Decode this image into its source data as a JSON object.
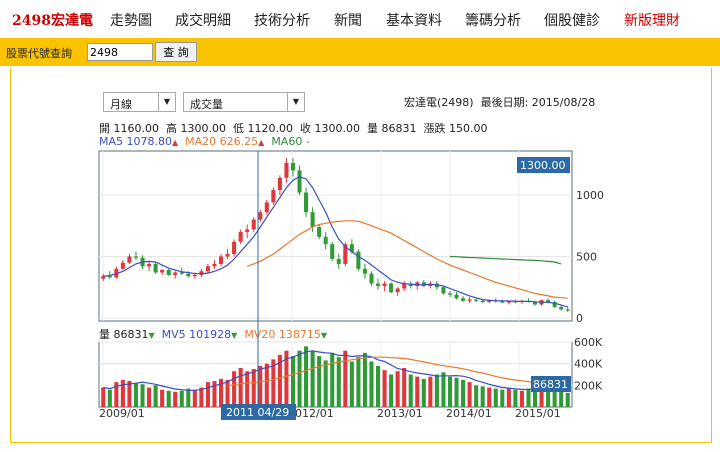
{
  "nav": {
    "brand": "2498宏達電",
    "items": [
      "走勢圖",
      "成交明細",
      "技術分析",
      "新聞",
      "基本資料",
      "籌碼分析",
      "個股健診",
      "新版理財"
    ]
  },
  "search": {
    "label": "股票代號查詢",
    "value": "2498",
    "button": "查 詢"
  },
  "controls": {
    "period": "月線",
    "indicator": "成交量"
  },
  "stock": {
    "name": "宏達電(2498)",
    "last_date_label": "最後日期:",
    "last_date": "2015/08/28"
  },
  "ohlc": {
    "open_label": "開",
    "open": "1160.00",
    "high_label": "高",
    "high": "1300.00",
    "low_label": "低",
    "low": "1120.00",
    "close_label": "收",
    "close": "1300.00",
    "volume_label": "量",
    "volume": "86831",
    "change_label": "漲跌",
    "change": "150.00"
  },
  "ma_line": {
    "ma5": "MA5 1078.80",
    "ma20": "MA20 626.25",
    "ma60": "MA60 -"
  },
  "vol_line": {
    "vol": "量 86831",
    "mv5": "MV5 101928",
    "mv20": "MV20 138715"
  },
  "colors": {
    "up": "#e0373c",
    "down": "#2f9a36",
    "ma5": "#3a4fc4",
    "ma20": "#e8782d",
    "ma60": "#2f8a3a",
    "tag": "#2c69a5",
    "accent": "#f9c300"
  },
  "chart_data": {
    "type": "candlestick",
    "price_ticks": [
      0,
      500,
      1000
    ],
    "volume_ticks": [
      "200K",
      "400K",
      "600K"
    ],
    "x_labels": [
      "2009/01",
      "2012/01",
      "2013/01",
      "2014/01",
      "2015/01"
    ],
    "cursor_label": "2011 04/29",
    "price_tag": "1300.00",
    "volume_tag": "86831",
    "candles": [
      [
        320,
        360,
        300,
        340,
        180
      ],
      [
        340,
        380,
        320,
        330,
        160
      ],
      [
        330,
        420,
        320,
        400,
        230
      ],
      [
        400,
        470,
        390,
        450,
        250
      ],
      [
        450,
        520,
        440,
        500,
        240
      ],
      [
        500,
        540,
        470,
        490,
        220
      ],
      [
        490,
        510,
        400,
        420,
        210
      ],
      [
        420,
        460,
        380,
        440,
        180
      ],
      [
        440,
        450,
        360,
        370,
        200
      ],
      [
        370,
        400,
        350,
        390,
        160
      ],
      [
        390,
        400,
        340,
        350,
        150
      ],
      [
        350,
        380,
        320,
        370,
        140
      ],
      [
        370,
        410,
        350,
        360,
        150
      ],
      [
        360,
        380,
        330,
        340,
        170
      ],
      [
        340,
        370,
        320,
        350,
        160
      ],
      [
        350,
        400,
        330,
        380,
        180
      ],
      [
        380,
        440,
        360,
        420,
        230
      ],
      [
        420,
        470,
        400,
        440,
        240
      ],
      [
        440,
        520,
        420,
        500,
        260
      ],
      [
        500,
        560,
        480,
        520,
        250
      ],
      [
        520,
        640,
        500,
        620,
        330
      ],
      [
        620,
        720,
        600,
        700,
        360
      ],
      [
        700,
        760,
        650,
        720,
        330
      ],
      [
        720,
        820,
        700,
        800,
        350
      ],
      [
        800,
        880,
        780,
        860,
        380
      ],
      [
        860,
        960,
        840,
        940,
        400
      ],
      [
        940,
        1060,
        920,
        1040,
        440
      ],
      [
        1040,
        1160,
        1000,
        1140,
        480
      ],
      [
        1140,
        1300,
        1100,
        1260,
        520
      ],
      [
        1260,
        1300,
        1150,
        1200,
        470
      ],
      [
        1200,
        1240,
        1000,
        1020,
        520
      ],
      [
        1020,
        1060,
        820,
        860,
        560
      ],
      [
        860,
        900,
        700,
        740,
        520
      ],
      [
        740,
        760,
        640,
        660,
        470
      ],
      [
        660,
        700,
        560,
        600,
        430
      ],
      [
        600,
        620,
        460,
        480,
        500
      ],
      [
        480,
        520,
        400,
        440,
        460
      ],
      [
        440,
        620,
        420,
        600,
        520
      ],
      [
        600,
        640,
        520,
        540,
        420
      ],
      [
        540,
        560,
        380,
        400,
        460
      ],
      [
        400,
        440,
        320,
        360,
        500
      ],
      [
        360,
        380,
        260,
        280,
        420
      ],
      [
        280,
        320,
        230,
        260,
        380
      ],
      [
        260,
        300,
        220,
        280,
        340
      ],
      [
        280,
        290,
        200,
        210,
        300
      ],
      [
        210,
        250,
        180,
        240,
        330
      ],
      [
        240,
        300,
        220,
        280,
        360
      ],
      [
        280,
        300,
        240,
        260,
        300
      ],
      [
        260,
        300,
        230,
        290,
        280
      ],
      [
        290,
        310,
        250,
        260,
        260
      ],
      [
        260,
        300,
        240,
        280,
        280
      ],
      [
        280,
        300,
        230,
        250,
        300
      ],
      [
        250,
        260,
        190,
        200,
        320
      ],
      [
        200,
        220,
        170,
        190,
        280
      ],
      [
        190,
        210,
        150,
        160,
        270
      ],
      [
        160,
        180,
        130,
        140,
        250
      ],
      [
        140,
        170,
        120,
        150,
        230
      ],
      [
        150,
        160,
        130,
        140,
        200
      ],
      [
        140,
        150,
        120,
        130,
        190
      ],
      [
        130,
        150,
        120,
        145,
        180
      ],
      [
        145,
        160,
        125,
        135,
        170
      ],
      [
        135,
        150,
        120,
        125,
        160
      ],
      [
        125,
        140,
        110,
        135,
        170
      ],
      [
        135,
        150,
        120,
        130,
        160
      ],
      [
        130,
        145,
        115,
        140,
        150
      ],
      [
        140,
        160,
        125,
        130,
        170
      ],
      [
        130,
        140,
        100,
        110,
        190
      ],
      [
        110,
        150,
        100,
        145,
        210
      ],
      [
        145,
        160,
        120,
        130,
        180
      ],
      [
        130,
        140,
        80,
        90,
        230
      ],
      [
        90,
        110,
        60,
        70,
        200
      ],
      [
        70,
        90,
        50,
        60,
        130
      ]
    ],
    "ma5": [
      340,
      345,
      360,
      380,
      410,
      440,
      455,
      460,
      455,
      430,
      405,
      390,
      375,
      370,
      360,
      360,
      365,
      380,
      400,
      430,
      480,
      540,
      600,
      660,
      740,
      820,
      900,
      980,
      1060,
      1120,
      1150,
      1130,
      1060,
      960,
      860,
      740,
      640,
      580,
      540,
      500,
      470,
      430,
      390,
      350,
      310,
      290,
      280,
      275,
      270,
      270,
      275,
      270,
      260,
      240,
      220,
      200,
      180,
      165,
      150,
      145,
      140,
      140,
      138,
      135,
      135,
      135,
      132,
      130,
      128,
      120,
      105,
      90
    ],
    "ma20_start": 22,
    "ma20": [
      420,
      440,
      460,
      490,
      520,
      560,
      600,
      640,
      680,
      710,
      740,
      760,
      770,
      780,
      785,
      790,
      790,
      785,
      770,
      750,
      730,
      710,
      690,
      660,
      630,
      600,
      570,
      540,
      510,
      480,
      455,
      430,
      410,
      390,
      370,
      350,
      330,
      310,
      290,
      275,
      260,
      245,
      230,
      215,
      200,
      190,
      180,
      170,
      165,
      160
    ],
    "ma60_start": 53,
    "ma60": [
      500,
      498,
      495,
      492,
      490,
      488,
      485,
      482,
      480,
      478,
      475,
      472,
      470,
      468,
      465,
      460,
      455,
      440
    ]
  }
}
